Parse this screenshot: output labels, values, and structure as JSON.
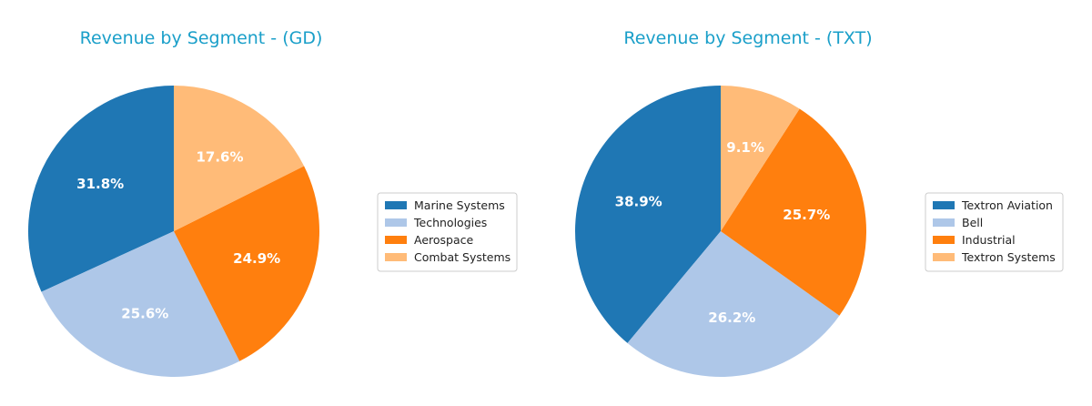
{
  "chart_data": [
    {
      "type": "pie",
      "title": "Revenue by Segment - (GD)",
      "categories": [
        "Marine Systems",
        "Technologies",
        "Aerospace",
        "Combat Systems"
      ],
      "values": [
        31.8,
        25.6,
        24.9,
        17.6
      ],
      "labels": [
        "31.8%",
        "25.6%",
        "24.9%",
        "17.6%"
      ],
      "colors": [
        "#1f77b4",
        "#aec7e8",
        "#ff7f0e",
        "#ffbb78"
      ],
      "start_angle": 90,
      "direction": "counterclockwise",
      "legend": "right"
    },
    {
      "type": "pie",
      "title": "Revenue by Segment - (TXT)",
      "categories": [
        "Textron Aviation",
        "Bell",
        "Industrial",
        "Textron Systems"
      ],
      "values": [
        38.9,
        26.2,
        25.7,
        9.1
      ],
      "labels": [
        "38.9%",
        "26.2%",
        "25.7%",
        "9.1%"
      ],
      "colors": [
        "#1f77b4",
        "#aec7e8",
        "#ff7f0e",
        "#ffbb78"
      ],
      "start_angle": 90,
      "direction": "counterclockwise",
      "legend": "right"
    }
  ],
  "style": {
    "title_color": "#1a9fc9",
    "label_color": "#ffffff",
    "legend_border": "#cccccc"
  }
}
